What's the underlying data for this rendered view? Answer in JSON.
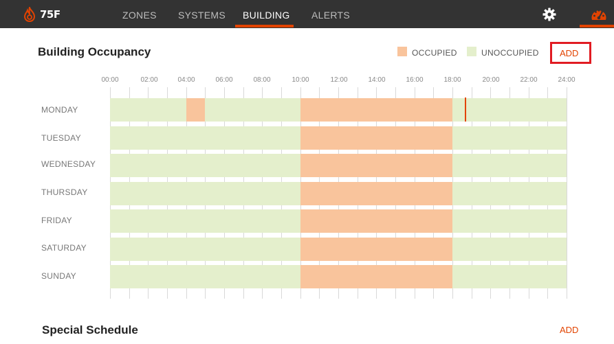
{
  "app": {
    "logo_text": "75F"
  },
  "nav": {
    "zones": "ZONES",
    "systems": "SYSTEMS",
    "building": "BUILDING",
    "alerts": "ALERTS"
  },
  "occupancy": {
    "title": "Building Occupancy",
    "legend_occupied": "OCCUPIED",
    "legend_unoccupied": "UNOCCUPIED",
    "add_label": "ADD",
    "hours": [
      "00:00",
      "02:00",
      "04:00",
      "06:00",
      "08:00",
      "10:00",
      "12:00",
      "14:00",
      "16:00",
      "18:00",
      "20:00",
      "22:00",
      "24:00"
    ],
    "days": [
      "MONDAY",
      "TUESDAY",
      "WEDNESDAY",
      "THURSDAY",
      "FRIDAY",
      "SATURDAY",
      "SUNDAY"
    ]
  },
  "special_schedule": {
    "title": "Special Schedule",
    "add_label": "ADD"
  },
  "colors": {
    "brand": "#e24301",
    "occupied": "#f9c49c",
    "unoccupied": "#e4efcc",
    "nav_bg": "#333333"
  }
}
